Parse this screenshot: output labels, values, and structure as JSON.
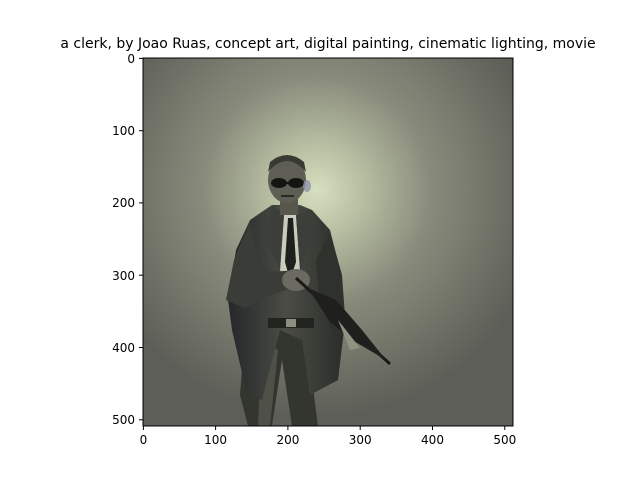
{
  "title": "a clerk,  by Joao Ruas, concept art, digital painting, cinematic lighting, movie",
  "image": {
    "subject": "man-in-suit-with-glasses",
    "colors": {
      "background_dark": "#5d5e57",
      "background_mid": "#8f9482",
      "glow": "#d6e0bf",
      "figure": "#2d2f2b",
      "figure_mid": "#4a4c45",
      "skin": "#6b6a60"
    }
  },
  "axes": {
    "x_ticks": [
      "0",
      "100",
      "200",
      "300",
      "400",
      "500"
    ],
    "y_ticks": [
      "0",
      "100",
      "200",
      "300",
      "400",
      "500"
    ],
    "xlim": [
      0,
      512
    ],
    "ylim": [
      512,
      0
    ]
  }
}
